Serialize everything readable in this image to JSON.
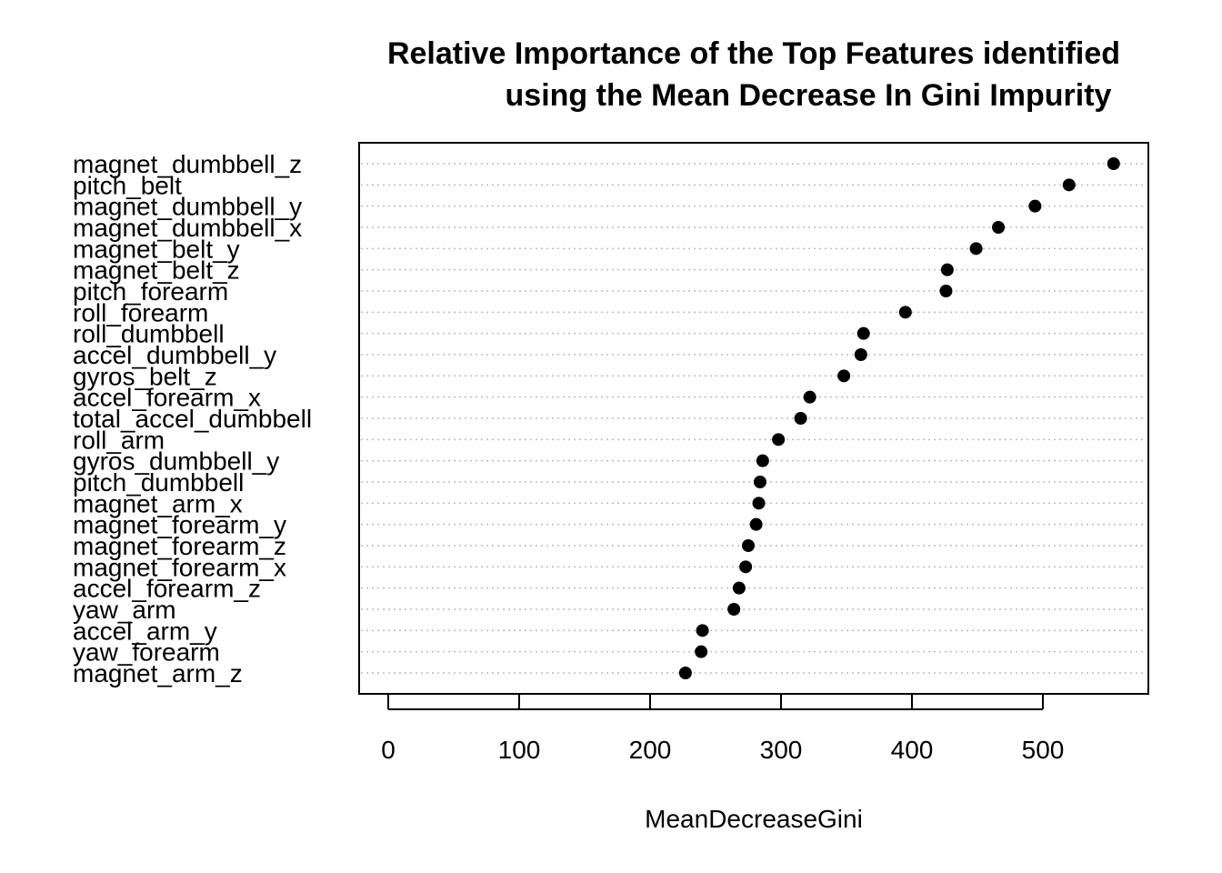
{
  "chart_data": {
    "type": "scatter",
    "title_lines": [
      "Relative Importance of the Top Features identified",
      "using the Mean Decrease In Gini Impurity"
    ],
    "xlabel": "MeanDecreaseGini",
    "ylabel": "",
    "xlim": [
      0,
      560
    ],
    "xticks": [
      0,
      100,
      200,
      300,
      400,
      500
    ],
    "grid": "horizontal-dotted",
    "features": [
      {
        "name": "magnet_dumbbell_z",
        "value": 554
      },
      {
        "name": "pitch_belt",
        "value": 520
      },
      {
        "name": "magnet_dumbbell_y",
        "value": 494
      },
      {
        "name": "magnet_dumbbell_x",
        "value": 466
      },
      {
        "name": "magnet_belt_y",
        "value": 449
      },
      {
        "name": "magnet_belt_z",
        "value": 427
      },
      {
        "name": "pitch_forearm",
        "value": 426
      },
      {
        "name": "roll_forearm",
        "value": 395
      },
      {
        "name": "roll_dumbbell",
        "value": 363
      },
      {
        "name": "accel_dumbbell_y",
        "value": 361
      },
      {
        "name": "gyros_belt_z",
        "value": 348
      },
      {
        "name": "accel_forearm_x",
        "value": 322
      },
      {
        "name": "total_accel_dumbbell",
        "value": 315
      },
      {
        "name": "roll_arm",
        "value": 298
      },
      {
        "name": "gyros_dumbbell_y",
        "value": 286
      },
      {
        "name": "pitch_dumbbell",
        "value": 284
      },
      {
        "name": "magnet_arm_x",
        "value": 283
      },
      {
        "name": "magnet_forearm_y",
        "value": 281
      },
      {
        "name": "magnet_forearm_z",
        "value": 275
      },
      {
        "name": "magnet_forearm_x",
        "value": 273
      },
      {
        "name": "accel_forearm_z",
        "value": 268
      },
      {
        "name": "yaw_arm",
        "value": 264
      },
      {
        "name": "accel_arm_y",
        "value": 240
      },
      {
        "name": "yaw_forearm",
        "value": 239
      },
      {
        "name": "magnet_arm_z",
        "value": 227
      }
    ]
  }
}
